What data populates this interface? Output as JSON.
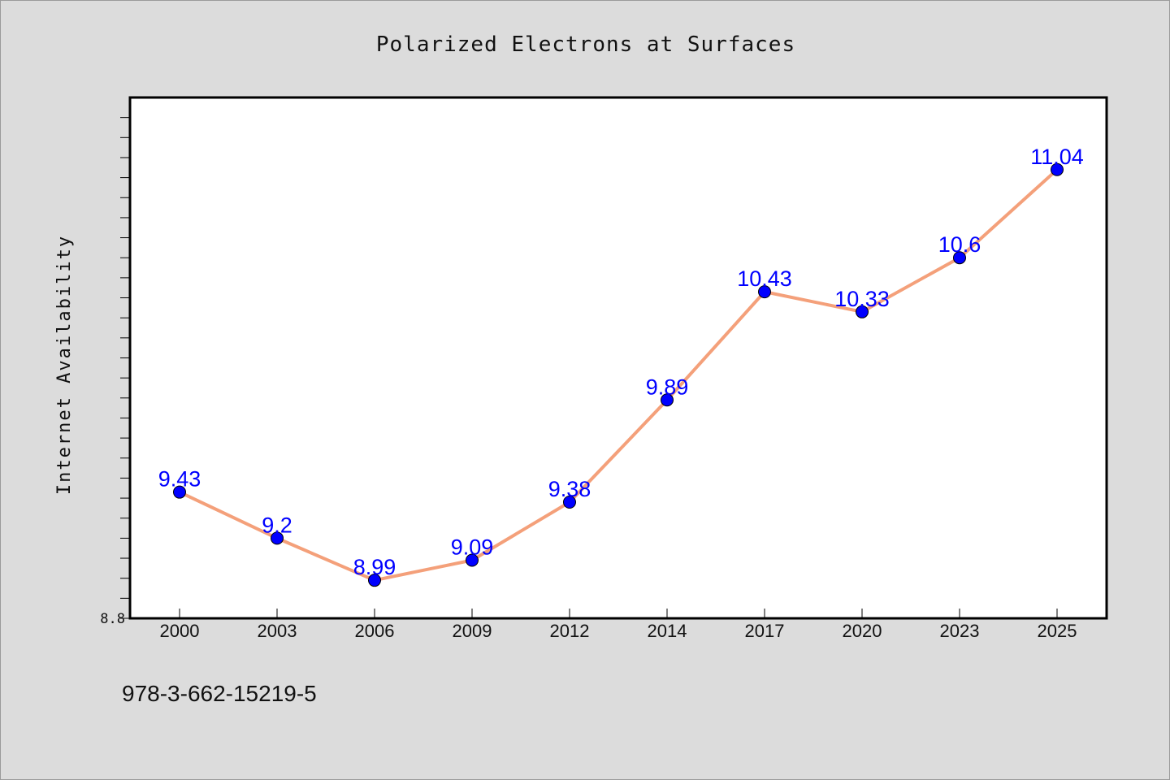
{
  "chart_data": {
    "type": "line",
    "title": "Polarized Electrons at Surfaces",
    "xlabel": "",
    "ylabel": "Internet Availability",
    "categories": [
      "2000",
      "2003",
      "2006",
      "2009",
      "2012",
      "2014",
      "2017",
      "2020",
      "2023",
      "2025"
    ],
    "series": [
      {
        "values": [
          9.43,
          9.2,
          8.99,
          9.09,
          9.38,
          9.89,
          10.43,
          10.33,
          10.6,
          11.04
        ]
      }
    ],
    "data_labels": [
      "9.43",
      "9.2",
      "8.99",
      "9.09",
      "9.38",
      "9.89",
      "10.43",
      "10.33",
      "10.6",
      "11.04"
    ],
    "y_tick_labels": [
      "8.8"
    ],
    "ylim": [
      8.8,
      11.4
    ],
    "grid": false,
    "colors": {
      "line": "#f4a07a",
      "marker": "#0000ff",
      "label": "#0000ff",
      "background": "#dcdcdc",
      "plot_background": "#ffffff"
    }
  },
  "footer": {
    "isbn": "978-3-662-15219-5"
  }
}
